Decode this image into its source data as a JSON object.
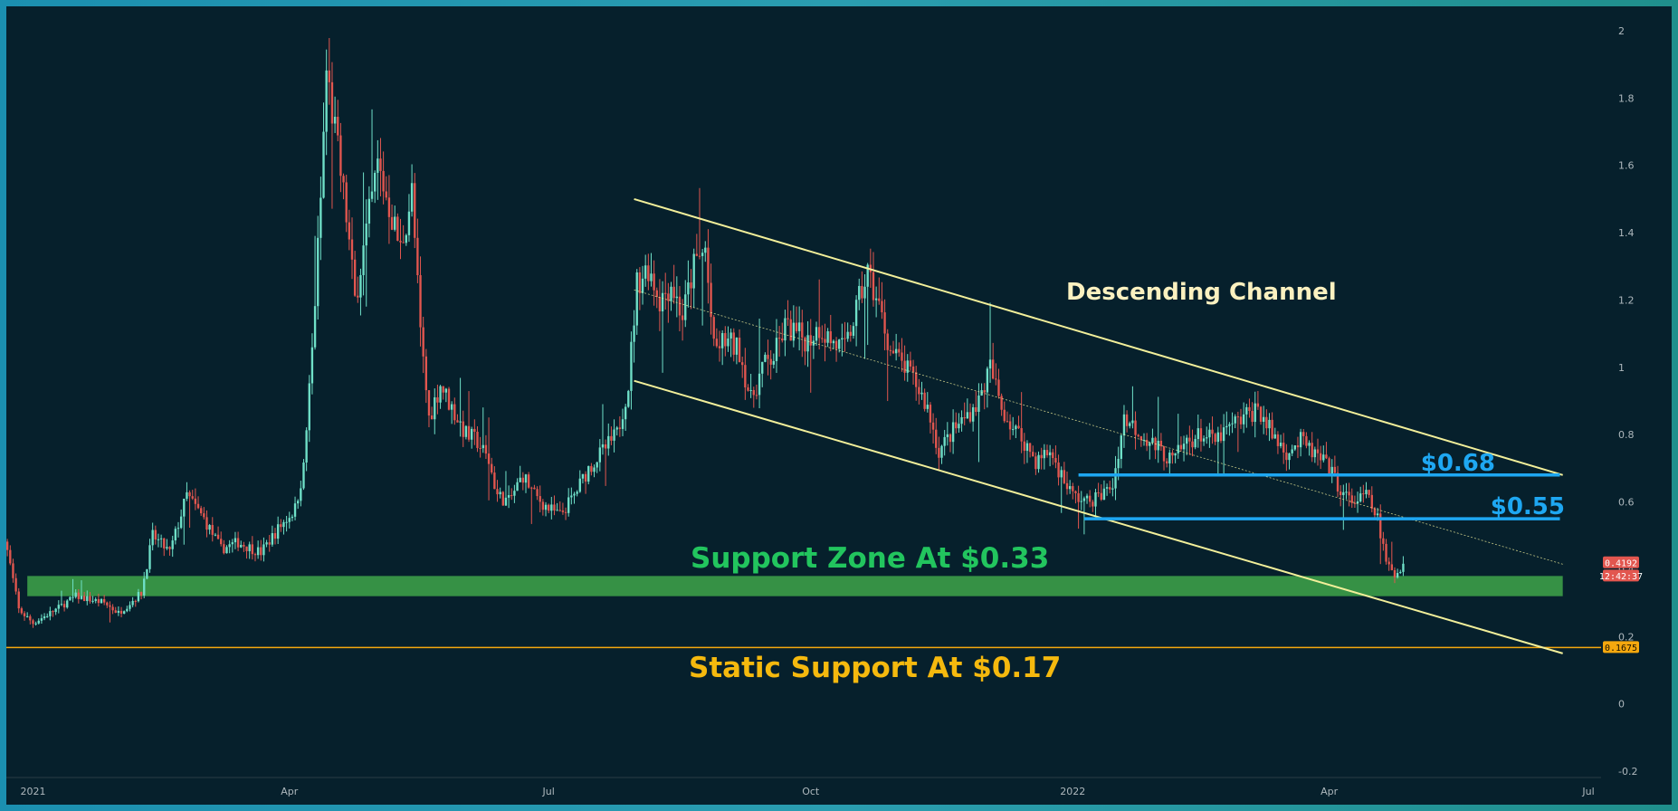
{
  "chart_data": {
    "type": "candlestick",
    "title": "",
    "xlabel": "",
    "ylabel": "",
    "ylim": [
      -0.2,
      2.0
    ],
    "y_ticks": [
      "2",
      "1.8",
      "1.6",
      "1.4",
      "1.2",
      "1",
      "0.8",
      "0.6",
      "0.4",
      "0.2",
      "0",
      "-0.2"
    ],
    "x_ticks": [
      {
        "label": "2021",
        "day": 0
      },
      {
        "label": "Apr",
        "day": 90
      },
      {
        "label": "Jul",
        "day": 181
      },
      {
        "label": "Oct",
        "day": 273
      },
      {
        "label": "2022",
        "day": 365
      },
      {
        "label": "Apr",
        "day": 455
      },
      {
        "label": "Jul",
        "day": 546
      }
    ],
    "x_range_days": [
      -10,
      546
    ],
    "grid": false,
    "colors": {
      "up": "#6fe0c8",
      "down": "#e2564f",
      "channel": "#f2ef9a",
      "resistance": "#1ea7f2",
      "support_zone": "#3fa64a",
      "static_support": "#f5a80e",
      "channel_label": "#fbf1c0",
      "support_zone_label": "#22c55e",
      "static_label": "#f5b90e"
    },
    "price_path": [
      [
        -10,
        0.5
      ],
      [
        -5,
        0.28
      ],
      [
        0,
        0.24
      ],
      [
        8,
        0.28
      ],
      [
        15,
        0.32
      ],
      [
        25,
        0.3
      ],
      [
        30,
        0.27
      ],
      [
        38,
        0.33
      ],
      [
        42,
        0.5
      ],
      [
        48,
        0.45
      ],
      [
        54,
        0.62
      ],
      [
        60,
        0.55
      ],
      [
        66,
        0.46
      ],
      [
        72,
        0.48
      ],
      [
        80,
        0.45
      ],
      [
        86,
        0.52
      ],
      [
        92,
        0.58
      ],
      [
        95,
        0.7
      ],
      [
        98,
        1.05
      ],
      [
        101,
        1.5
      ],
      [
        103,
        1.88
      ],
      [
        106,
        1.7
      ],
      [
        110,
        1.45
      ],
      [
        113,
        1.2
      ],
      [
        117,
        1.4
      ],
      [
        121,
        1.6
      ],
      [
        125,
        1.48
      ],
      [
        129,
        1.35
      ],
      [
        133,
        1.52
      ],
      [
        136,
        1.1
      ],
      [
        139,
        0.85
      ],
      [
        143,
        0.95
      ],
      [
        147,
        0.88
      ],
      [
        152,
        0.8
      ],
      [
        156,
        0.78
      ],
      [
        160,
        0.72
      ],
      [
        163,
        0.62
      ],
      [
        167,
        0.6
      ],
      [
        172,
        0.68
      ],
      [
        176,
        0.62
      ],
      [
        181,
        0.58
      ],
      [
        185,
        0.56
      ],
      [
        190,
        0.62
      ],
      [
        195,
        0.7
      ],
      [
        200,
        0.75
      ],
      [
        205,
        0.8
      ],
      [
        209,
        0.95
      ],
      [
        212,
        1.25
      ],
      [
        216,
        1.3
      ],
      [
        220,
        1.2
      ],
      [
        224,
        1.25
      ],
      [
        228,
        1.15
      ],
      [
        232,
        1.3
      ],
      [
        236,
        1.35
      ],
      [
        239,
        1.05
      ],
      [
        243,
        1.08
      ],
      [
        248,
        1.05
      ],
      [
        252,
        0.9
      ],
      [
        256,
        1.0
      ],
      [
        260,
        1.03
      ],
      [
        264,
        1.12
      ],
      [
        268,
        1.1
      ],
      [
        272,
        1.08
      ],
      [
        276,
        1.12
      ],
      [
        280,
        1.08
      ],
      [
        285,
        1.05
      ],
      [
        290,
        1.2
      ],
      [
        293,
        1.28
      ],
      [
        297,
        1.18
      ],
      [
        301,
        1.05
      ],
      [
        306,
        1.0
      ],
      [
        310,
        0.95
      ],
      [
        314,
        0.88
      ],
      [
        318,
        0.75
      ],
      [
        322,
        0.8
      ],
      [
        327,
        0.85
      ],
      [
        332,
        0.9
      ],
      [
        336,
        1.0
      ],
      [
        340,
        0.88
      ],
      [
        344,
        0.82
      ],
      [
        348,
        0.78
      ],
      [
        352,
        0.72
      ],
      [
        357,
        0.75
      ],
      [
        361,
        0.68
      ],
      [
        365,
        0.62
      ],
      [
        370,
        0.6
      ],
      [
        375,
        0.62
      ],
      [
        379,
        0.65
      ],
      [
        383,
        0.85
      ],
      [
        387,
        0.82
      ],
      [
        392,
        0.78
      ],
      [
        396,
        0.75
      ],
      [
        400,
        0.72
      ],
      [
        405,
        0.78
      ],
      [
        410,
        0.8
      ],
      [
        415,
        0.78
      ],
      [
        420,
        0.82
      ],
      [
        425,
        0.85
      ],
      [
        430,
        0.88
      ],
      [
        435,
        0.8
      ],
      [
        440,
        0.75
      ],
      [
        445,
        0.78
      ],
      [
        450,
        0.74
      ],
      [
        455,
        0.7
      ],
      [
        460,
        0.62
      ],
      [
        464,
        0.6
      ],
      [
        468,
        0.62
      ],
      [
        472,
        0.55
      ],
      [
        475,
        0.42
      ],
      [
        478,
        0.38
      ],
      [
        481,
        0.42
      ]
    ],
    "annotations": [
      {
        "text": "Descending Channel",
        "type": "label",
        "color_key": "channel_label"
      },
      {
        "text": "$0.68",
        "type": "level",
        "value": 0.68,
        "color_key": "resistance"
      },
      {
        "text": "$0.55",
        "type": "level",
        "value": 0.55,
        "color_key": "resistance"
      },
      {
        "text": "Support Zone At $0.33",
        "type": "zone",
        "from": 0.32,
        "to": 0.38,
        "color_key": "support_zone_label"
      },
      {
        "text": "Static Support At $0.17",
        "type": "level",
        "value": 0.1675,
        "color_key": "static_label"
      }
    ],
    "channel_lines": [
      {
        "name": "upper",
        "from": {
          "day": 211,
          "price": 1.5
        },
        "to": {
          "day": 537,
          "price": 0.68
        }
      },
      {
        "name": "lower",
        "from": {
          "day": 211,
          "price": 0.96
        },
        "to": {
          "day": 537,
          "price": 0.15
        }
      },
      {
        "name": "mid",
        "from": {
          "day": 211,
          "price": 1.23
        },
        "to": {
          "day": 537,
          "price": 0.415
        }
      }
    ],
    "level_spans": [
      {
        "value": 0.68,
        "from_day": 367,
        "to_day": 536
      },
      {
        "value": 0.55,
        "from_day": 369,
        "to_day": 536
      },
      {
        "from": 0.32,
        "to": 0.38,
        "from_day": -2,
        "to_day": 537
      }
    ],
    "price_labels": [
      {
        "text": "0.4192",
        "value": 0.4192,
        "bg": "#e2564f"
      },
      {
        "text": "12:42:37",
        "value": 0.38,
        "bg": "#e2564f"
      },
      {
        "text": "0.1675",
        "value": 0.1675,
        "bg": "#f5a80e"
      }
    ]
  }
}
